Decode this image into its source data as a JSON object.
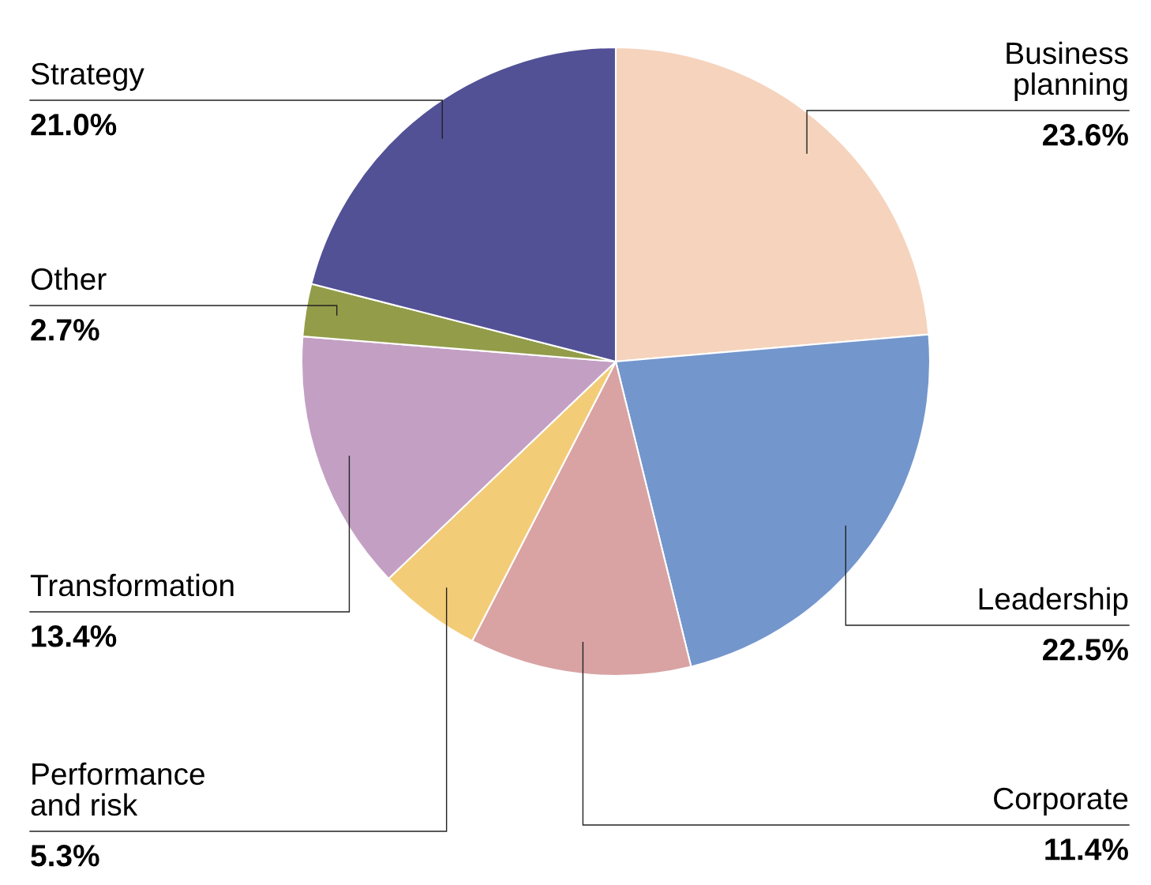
{
  "chart_data": {
    "type": "pie",
    "categories": [
      "Business\nplanning",
      "Leadership",
      "Corporate",
      "Performance\nand risk",
      "Transformation",
      "Other",
      "Strategy"
    ],
    "values": [
      23.6,
      22.5,
      11.4,
      5.3,
      13.4,
      2.7,
      21.0
    ],
    "colors": [
      "#f5d3bd",
      "#7396cc",
      "#d9a3a3",
      "#f3cc78",
      "#c3a0c3",
      "#939c48",
      "#525196"
    ],
    "value_labels": [
      "23.6%",
      "22.5%",
      "11.4%",
      "5.3%",
      "13.4%",
      "2.7%",
      "21.0%"
    ],
    "legend": false
  }
}
